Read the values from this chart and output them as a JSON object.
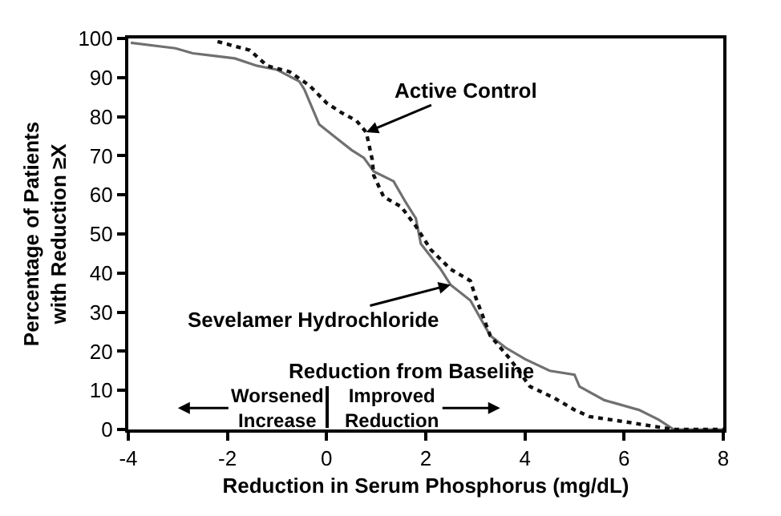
{
  "chart_data": {
    "type": "line",
    "xlabel": "Reduction in Serum Phosphorus (mg/dL)",
    "ylabel": "Percentage of Patients\nwith Reduction ≥X",
    "xlim": [
      -4,
      8
    ],
    "xticks": [
      -4,
      -2,
      0,
      2,
      4,
      6,
      8
    ],
    "ylim": [
      0,
      100
    ],
    "yticks": [
      0,
      10,
      20,
      30,
      40,
      50,
      60,
      70,
      80,
      90,
      100
    ],
    "grid": false,
    "legend": false,
    "marker": "none",
    "series": [
      {
        "name": "Sevelamer Hydrochloride",
        "color": "#707070",
        "line_style": "solid",
        "x": [
          -3.95,
          -3.05,
          -2.7,
          -1.85,
          -1.4,
          -1,
          -0.55,
          -0.45,
          -0.15,
          0.2,
          0.5,
          0.75,
          0.95,
          1.35,
          1.6,
          1.8,
          1.9,
          2.3,
          2.5,
          2.9,
          3.3,
          3.6,
          4,
          4.5,
          5,
          5.1,
          5.6,
          6.3,
          6.7,
          7,
          8
        ],
        "values": [
          98.9,
          97.5,
          96.2,
          94.9,
          93,
          92,
          89,
          87,
          78,
          74.5,
          71.5,
          69.5,
          66,
          63.5,
          58,
          54,
          47.5,
          41,
          37,
          33,
          24,
          21,
          18,
          15,
          14,
          11,
          7.5,
          5,
          2.5,
          0,
          0
        ]
      },
      {
        "name": "Active Control",
        "color": "#111111",
        "line_style": "dotted",
        "x": [
          -2.2,
          -1.55,
          -1.2,
          -0.75,
          -0.35,
          0,
          0.3,
          0.6,
          0.8,
          0.92,
          0.95,
          1.15,
          1.5,
          1.8,
          2.1,
          2.5,
          2.9,
          3,
          3.3,
          3.7,
          4.1,
          4.6,
          5,
          5.3,
          6,
          6.5,
          7,
          8
        ],
        "values": [
          99.2,
          97,
          93,
          91.5,
          88,
          83.5,
          81,
          79,
          76,
          69,
          65,
          59.5,
          57,
          52,
          46,
          41,
          38,
          34,
          24,
          18,
          11,
          8,
          5,
          3.3,
          2,
          1,
          0,
          0
        ]
      }
    ],
    "annotations": [
      "Reduction from Baseline",
      "Worsened\nIncrease",
      "Improved\nReduction"
    ]
  }
}
